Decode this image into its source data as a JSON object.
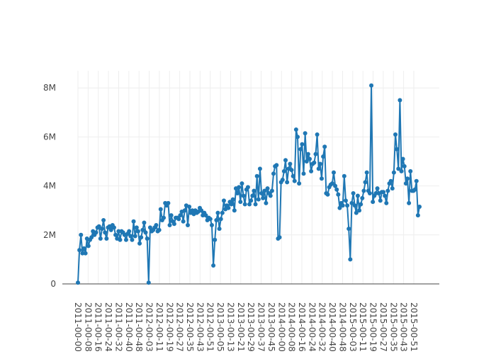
{
  "chart_data": {
    "type": "line",
    "mode": "lines+markers",
    "title": "",
    "xlabel": "",
    "ylabel": "",
    "grid": true,
    "ylim": [
      0,
      8700000
    ],
    "y_ticks": [
      {
        "value": 0,
        "label": "0"
      },
      {
        "value": 2000000,
        "label": "2M"
      },
      {
        "value": 4000000,
        "label": "4M"
      },
      {
        "value": 6000000,
        "label": "6M"
      },
      {
        "value": 8000000,
        "label": "8M"
      }
    ],
    "x_ticks": [
      "2011-00-00",
      "2011-00-08",
      "2011-00-16",
      "2011-00-24",
      "2011-00-32",
      "2011-00-40",
      "2011-00-48",
      "2012-00-03",
      "2012-00-11",
      "2012-00-19",
      "2012-00-27",
      "2012-00-35",
      "2012-00-43",
      "2012-00-51",
      "2013-00-05",
      "2013-00-13",
      "2013-00-21",
      "2013-00-29",
      "2013-00-37",
      "2013-00-45",
      "2014-00-00",
      "2014-00-08",
      "2014-00-16",
      "2014-00-24",
      "2014-00-32",
      "2014-00-40",
      "2014-00-48",
      "2015-00-03",
      "2015-00-11",
      "2015-00-19",
      "2015-00-27",
      "2015-00-35",
      "2015-00-43",
      "2015-00-51"
    ],
    "series": [
      {
        "color": "#1f77b4",
        "values": [
          50000,
          1380000,
          2000000,
          1250000,
          1450000,
          1250000,
          1850000,
          1550000,
          1800000,
          1900000,
          2150000,
          2000000,
          2100000,
          2300000,
          2350000,
          1850000,
          2250000,
          2600000,
          2100000,
          1850000,
          2300000,
          2350000,
          2200000,
          2400000,
          2300000,
          2000000,
          1850000,
          2150000,
          1800000,
          2150000,
          2100000,
          2000000,
          1800000,
          2050000,
          2150000,
          1950000,
          1800000,
          2550000,
          1950000,
          2300000,
          2150000,
          1650000,
          1900000,
          2200000,
          2500000,
          2100000,
          1850000,
          50000,
          2300000,
          2150000,
          2200000,
          2300000,
          2400000,
          2150000,
          2200000,
          3050000,
          2600000,
          2700000,
          3300000,
          3200000,
          3300000,
          2400000,
          2800000,
          2550000,
          2450000,
          2700000,
          2700000,
          2650000,
          2800000,
          2950000,
          2550000,
          3000000,
          3200000,
          2400000,
          3150000,
          2900000,
          3000000,
          2850000,
          3000000,
          2900000,
          2950000,
          3100000,
          3000000,
          2800000,
          2900000,
          2800000,
          2600000,
          2700000,
          2650000,
          2400000,
          750000,
          1800000,
          2600000,
          2900000,
          2250000,
          2650000,
          2900000,
          3400000,
          3050000,
          3200000,
          3100000,
          3350000,
          3250000,
          3450000,
          3000000,
          3900000,
          3700000,
          3950000,
          3350000,
          4100000,
          3600000,
          3250000,
          3850000,
          3950000,
          3250000,
          3400000,
          3600000,
          3800000,
          3250000,
          4400000,
          3450000,
          4700000,
          3700000,
          3500000,
          3800000,
          3300000,
          3900000,
          3700000,
          3600000,
          3800000,
          4500000,
          4800000,
          4850000,
          1850000,
          1900000,
          4150000,
          4250000,
          4600000,
          5050000,
          4150000,
          4700000,
          4900000,
          4650000,
          4400000,
          4200000,
          6300000,
          6000000,
          4100000,
          5500000,
          5700000,
          4500000,
          6150000,
          5000000,
          5300000,
          5100000,
          4600000,
          4900000,
          4950000,
          5300000,
          6100000,
          4700000,
          4900000,
          4300000,
          5200000,
          5600000,
          3700000,
          3650000,
          3950000,
          4050000,
          4100000,
          4550000,
          4000000,
          3850000,
          3650000,
          3100000,
          3300000,
          3200000,
          4400000,
          3400000,
          3200000,
          2250000,
          1000000,
          3300000,
          3700000,
          3200000,
          2900000,
          3600000,
          3000000,
          3250000,
          3500000,
          3800000,
          4150000,
          4550000,
          3800000,
          3700000,
          8100000,
          3350000,
          3600000,
          3700000,
          3900000,
          3700000,
          3400000,
          3750000,
          3750000,
          3600000,
          3300000,
          3800000,
          4100000,
          4200000,
          3900000,
          4550000,
          6100000,
          5500000,
          4700000,
          7500000,
          4600000,
          5100000,
          4800000,
          4100000,
          4300000,
          3300000,
          4600000,
          3800000,
          3800000,
          3850000,
          4200000,
          2800000,
          3150000
        ]
      }
    ]
  }
}
